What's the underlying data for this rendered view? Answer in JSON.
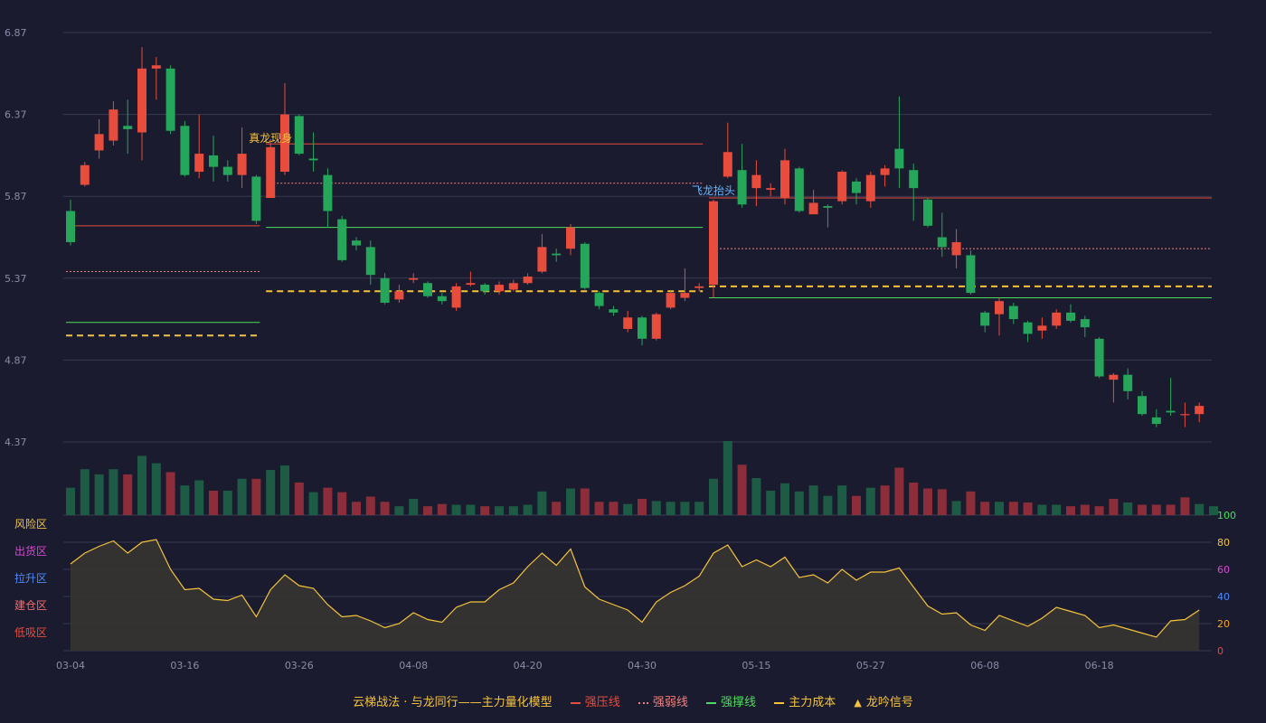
{
  "chart_data": {
    "type": "candlestick",
    "y_ticks": [
      "6.87",
      "6.37",
      "5.87",
      "5.37",
      "4.87",
      "4.37"
    ],
    "ylim": [
      4.37,
      6.87
    ],
    "x_ticks": [
      {
        "i": 0,
        "label": "03-04"
      },
      {
        "i": 8,
        "label": "03-16"
      },
      {
        "i": 16,
        "label": "03-26"
      },
      {
        "i": 24,
        "label": "04-08"
      },
      {
        "i": 32,
        "label": "04-20"
      },
      {
        "i": 40,
        "label": "04-30"
      },
      {
        "i": 48,
        "label": "05-15"
      },
      {
        "i": 56,
        "label": "05-27"
      },
      {
        "i": 64,
        "label": "06-08"
      },
      {
        "i": 72,
        "label": "06-18"
      }
    ],
    "candles": [
      [
        5.78,
        5.59,
        5.85,
        5.57
      ],
      [
        5.94,
        6.06,
        6.08,
        5.93
      ],
      [
        6.15,
        6.25,
        6.34,
        6.1
      ],
      [
        6.21,
        6.4,
        6.45,
        6.18
      ],
      [
        6.3,
        6.28,
        6.46,
        6.13
      ],
      [
        6.26,
        6.65,
        6.78,
        6.09
      ],
      [
        6.65,
        6.67,
        6.72,
        6.46
      ],
      [
        6.65,
        6.27,
        6.67,
        6.25
      ],
      [
        6.3,
        6.0,
        6.33,
        5.99
      ],
      [
        6.02,
        6.13,
        6.37,
        5.98
      ],
      [
        6.12,
        6.05,
        6.24,
        5.96
      ],
      [
        6.05,
        6.0,
        6.09,
        5.96
      ],
      [
        6.0,
        6.13,
        6.29,
        5.92
      ],
      [
        5.99,
        5.72,
        6.0,
        5.7
      ],
      [
        5.86,
        6.17,
        6.22,
        5.86
      ],
      [
        6.02,
        6.37,
        6.56,
        6.0
      ],
      [
        6.36,
        6.13,
        6.37,
        6.12
      ],
      [
        6.1,
        6.09,
        6.26,
        6.02
      ],
      [
        6.0,
        5.78,
        6.04,
        5.68
      ],
      [
        5.73,
        5.48,
        5.75,
        5.47
      ],
      [
        5.6,
        5.57,
        5.62,
        5.54
      ],
      [
        5.56,
        5.39,
        5.6,
        5.33
      ],
      [
        5.37,
        5.22,
        5.4,
        5.21
      ],
      [
        5.24,
        5.29,
        5.33,
        5.22
      ],
      [
        5.36,
        5.37,
        5.4,
        5.34
      ],
      [
        5.34,
        5.26,
        5.35,
        5.25
      ],
      [
        5.26,
        5.23,
        5.28,
        5.21
      ],
      [
        5.19,
        5.32,
        5.34,
        5.17
      ],
      [
        5.33,
        5.34,
        5.41,
        5.32
      ],
      [
        5.33,
        5.29,
        5.34,
        5.27
      ],
      [
        5.29,
        5.33,
        5.35,
        5.27
      ],
      [
        5.3,
        5.34,
        5.36,
        5.29
      ],
      [
        5.34,
        5.38,
        5.4,
        5.33
      ],
      [
        5.41,
        5.56,
        5.64,
        5.4
      ],
      [
        5.52,
        5.51,
        5.55,
        5.47
      ],
      [
        5.55,
        5.68,
        5.7,
        5.51
      ],
      [
        5.58,
        5.31,
        5.59,
        5.3
      ],
      [
        5.28,
        5.2,
        5.29,
        5.18
      ],
      [
        5.18,
        5.16,
        5.2,
        5.14
      ],
      [
        5.06,
        5.13,
        5.17,
        5.04
      ],
      [
        5.13,
        5.0,
        5.14,
        4.96
      ],
      [
        5.0,
        5.15,
        5.16,
        4.99
      ],
      [
        5.19,
        5.28,
        5.29,
        5.18
      ],
      [
        5.25,
        5.28,
        5.43,
        5.23
      ],
      [
        5.31,
        5.32,
        5.34,
        5.29
      ],
      [
        5.33,
        5.84,
        5.85,
        5.25
      ],
      [
        5.99,
        6.14,
        6.32,
        5.98
      ],
      [
        6.03,
        5.82,
        6.19,
        5.8
      ],
      [
        5.92,
        6.0,
        6.09,
        5.81
      ],
      [
        5.91,
        5.92,
        5.95,
        5.87
      ],
      [
        5.86,
        6.09,
        6.16,
        5.82
      ],
      [
        6.04,
        5.78,
        6.05,
        5.77
      ],
      [
        5.76,
        5.83,
        5.91,
        5.76
      ],
      [
        5.81,
        5.8,
        5.82,
        5.68
      ],
      [
        5.84,
        6.02,
        6.03,
        5.82
      ],
      [
        5.96,
        5.89,
        5.98,
        5.82
      ],
      [
        5.84,
        6.0,
        6.02,
        5.8
      ],
      [
        6.0,
        6.04,
        6.06,
        5.93
      ],
      [
        6.16,
        6.04,
        6.48,
        5.92
      ],
      [
        6.03,
        5.92,
        6.07,
        5.72
      ],
      [
        5.85,
        5.69,
        5.86,
        5.68
      ],
      [
        5.62,
        5.56,
        5.77,
        5.5
      ],
      [
        5.51,
        5.59,
        5.67,
        5.43
      ],
      [
        5.51,
        5.28,
        5.54,
        5.27
      ],
      [
        5.16,
        5.08,
        5.17,
        5.04
      ],
      [
        5.15,
        5.23,
        5.25,
        5.02
      ],
      [
        5.2,
        5.12,
        5.22,
        5.09
      ],
      [
        5.1,
        5.03,
        5.11,
        4.98
      ],
      [
        5.05,
        5.08,
        5.13,
        5.0
      ],
      [
        5.08,
        5.16,
        5.18,
        5.06
      ],
      [
        5.16,
        5.11,
        5.21,
        5.1
      ],
      [
        5.12,
        5.07,
        5.14,
        5.01
      ],
      [
        5.0,
        4.77,
        5.01,
        4.76
      ],
      [
        4.75,
        4.78,
        4.79,
        4.61
      ],
      [
        4.78,
        4.68,
        4.82,
        4.63
      ],
      [
        4.65,
        4.54,
        4.68,
        4.53
      ],
      [
        4.52,
        4.48,
        4.57,
        4.46
      ],
      [
        4.56,
        4.55,
        4.76,
        4.53
      ],
      [
        4.54,
        4.54,
        4.61,
        4.46
      ],
      [
        4.54,
        4.59,
        4.61,
        4.49
      ]
    ],
    "volume": [
      [
        0.37,
        0
      ],
      [
        0.62,
        0
      ],
      [
        0.55,
        0
      ],
      [
        0.62,
        0
      ],
      [
        0.55,
        1
      ],
      [
        0.8,
        0
      ],
      [
        0.7,
        0
      ],
      [
        0.58,
        1
      ],
      [
        0.4,
        0
      ],
      [
        0.47,
        0
      ],
      [
        0.33,
        1
      ],
      [
        0.33,
        0
      ],
      [
        0.49,
        0
      ],
      [
        0.49,
        1
      ],
      [
        0.61,
        0
      ],
      [
        0.67,
        0
      ],
      [
        0.44,
        1
      ],
      [
        0.31,
        0
      ],
      [
        0.37,
        1
      ],
      [
        0.31,
        1
      ],
      [
        0.18,
        1
      ],
      [
        0.25,
        1
      ],
      [
        0.18,
        1
      ],
      [
        0.12,
        0
      ],
      [
        0.22,
        0
      ],
      [
        0.12,
        1
      ],
      [
        0.15,
        1
      ],
      [
        0.14,
        0
      ],
      [
        0.14,
        0
      ],
      [
        0.12,
        1
      ],
      [
        0.12,
        0
      ],
      [
        0.12,
        0
      ],
      [
        0.14,
        0
      ],
      [
        0.32,
        0
      ],
      [
        0.18,
        1
      ],
      [
        0.36,
        0
      ],
      [
        0.36,
        1
      ],
      [
        0.18,
        1
      ],
      [
        0.18,
        1
      ],
      [
        0.15,
        0
      ],
      [
        0.22,
        1
      ],
      [
        0.19,
        0
      ],
      [
        0.18,
        0
      ],
      [
        0.18,
        0
      ],
      [
        0.18,
        0
      ],
      [
        0.49,
        0
      ],
      [
        1.0,
        0
      ],
      [
        0.68,
        1
      ],
      [
        0.5,
        0
      ],
      [
        0.33,
        0
      ],
      [
        0.43,
        0
      ],
      [
        0.32,
        0
      ],
      [
        0.4,
        0
      ],
      [
        0.26,
        0
      ],
      [
        0.4,
        0
      ],
      [
        0.26,
        1
      ],
      [
        0.37,
        0
      ],
      [
        0.4,
        1
      ],
      [
        0.64,
        1
      ],
      [
        0.44,
        1
      ],
      [
        0.36,
        1
      ],
      [
        0.35,
        1
      ],
      [
        0.19,
        0
      ],
      [
        0.32,
        1
      ],
      [
        0.18,
        1
      ],
      [
        0.18,
        0
      ],
      [
        0.18,
        1
      ],
      [
        0.17,
        1
      ],
      [
        0.14,
        0
      ],
      [
        0.14,
        0
      ],
      [
        0.12,
        1
      ],
      [
        0.14,
        1
      ],
      [
        0.12,
        1
      ],
      [
        0.22,
        1
      ],
      [
        0.17,
        0
      ],
      [
        0.14,
        1
      ],
      [
        0.14,
        1
      ],
      [
        0.14,
        1
      ],
      [
        0.24,
        1
      ],
      [
        0.15,
        0
      ],
      [
        0.12,
        0
      ]
    ],
    "oscillator": [
      64,
      72,
      77,
      81,
      72,
      80,
      82,
      60,
      45,
      46,
      38,
      37,
      41,
      25,
      45,
      56,
      48,
      46,
      34,
      25,
      26,
      22,
      17,
      20,
      28,
      23,
      21,
      32,
      36,
      36,
      45,
      50,
      62,
      72,
      63,
      75,
      47,
      38,
      34,
      30,
      21,
      36,
      43,
      48,
      55,
      72,
      78,
      62,
      67,
      62,
      69,
      54,
      56,
      50,
      60,
      52,
      58,
      58,
      61,
      47,
      33,
      27,
      28,
      19,
      15,
      26,
      22,
      18,
      24,
      32,
      29,
      26,
      17,
      19,
      16,
      13,
      10,
      22,
      23,
      30
    ],
    "osc_ylim": [
      0,
      100
    ],
    "osc_ticks": [
      {
        "v": 100,
        "label": "100",
        "color": "#3fe05a"
      },
      {
        "v": 80,
        "label": "80",
        "color": "#f5c33b"
      },
      {
        "v": 60,
        "label": "60",
        "color": "#d748d3"
      },
      {
        "v": 40,
        "label": "40",
        "color": "#4b8bff"
      },
      {
        "v": 20,
        "label": "20",
        "color": "#f5a623"
      },
      {
        "v": 0,
        "label": "0",
        "color": "#e74c3c"
      }
    ],
    "zones": [
      {
        "v": 80,
        "label": "风险区",
        "color": "#f5c33b"
      },
      {
        "v": 60,
        "label": "出货区",
        "color": "#d748d3"
      },
      {
        "v": 40,
        "label": "拉升区",
        "color": "#4b8bff"
      },
      {
        "v": 20,
        "label": "建仓区",
        "color": "#f56c6c"
      },
      {
        "v": 0,
        "label": "低吸区",
        "color": "#e74c3c"
      }
    ],
    "segments": [
      {
        "type": "strong_pressure",
        "from": 0,
        "to": 13,
        "value": 5.69
      },
      {
        "type": "weak_pressure",
        "from": 0,
        "to": 13,
        "value": 5.41
      },
      {
        "type": "strong_support",
        "from": 0,
        "to": 13,
        "value": 5.1
      },
      {
        "type": "main_cost",
        "from": 0,
        "to": 13,
        "value": 5.02
      },
      {
        "type": "strong_pressure",
        "from": 14,
        "to": 44,
        "value": 6.19
      },
      {
        "type": "weak_pressure",
        "from": 14,
        "to": 44,
        "value": 5.95
      },
      {
        "type": "strong_support",
        "from": 14,
        "to": 44,
        "value": 5.68
      },
      {
        "type": "main_cost",
        "from": 14,
        "to": 44,
        "value": 5.29
      },
      {
        "type": "strong_pressure",
        "from": 45,
        "to": 80,
        "value": 5.86
      },
      {
        "type": "weak_pressure",
        "from": 45,
        "to": 80,
        "value": 5.55
      },
      {
        "type": "strong_support",
        "from": 45,
        "to": 80,
        "value": 5.25
      },
      {
        "type": "main_cost",
        "from": 45,
        "to": 80,
        "value": 5.32
      }
    ],
    "annotations": [
      {
        "i": 14,
        "value": 6.17,
        "text": "真龙现身",
        "color": "#f5c33b"
      },
      {
        "i": 45,
        "value": 5.85,
        "text": "飞龙抬头",
        "color": "#66b8ff"
      }
    ]
  },
  "colors": {
    "up": "#e74c3c",
    "down": "#26a65b",
    "vol_up": "#8b2e3a",
    "vol_down": "#1e5b45",
    "strong_pressure": "#e74c3c",
    "weak_pressure": "#f08080",
    "strong_support": "#4cdc5c",
    "main_cost": "#f5c33b",
    "signal": "#f5c33b",
    "grid": "#373a52",
    "axis_text": "#8a8da8",
    "bg": "#1a1b2e"
  },
  "legend": {
    "title": "云梯战法 · 与龙同行——主力量化模型",
    "strong_pressure": "强压线",
    "weak_pressure": "强弱线",
    "strong_support": "强撑线",
    "main_cost": "主力成本",
    "signal": "龙吟信号",
    "signal_icon": "▲"
  }
}
